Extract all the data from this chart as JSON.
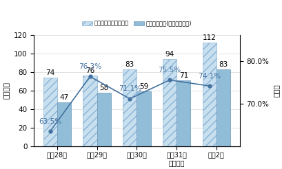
{
  "categories": [
    "平成28年",
    "平成29年",
    "平成30年",
    "平成31年\n令和元年",
    "令和2年"
  ],
  "supervision_values": [
    74,
    76,
    83,
    94,
    112
  ],
  "violation_values": [
    47,
    58,
    59,
    71,
    83
  ],
  "violation_rates": [
    63.5,
    76.3,
    71.1,
    75.5,
    74.1
  ],
  "ylabel_left": "事業場数",
  "ylabel_right": "違反率",
  "ylim_left": [
    0,
    120
  ],
  "ylim_right": [
    60.0,
    86.0
  ],
  "yticks_left": [
    0,
    20,
    40,
    60,
    80,
    100,
    120
  ],
  "yticks_right": [
    70.0,
    80.0
  ],
  "ytick_right_labels": [
    "70.0%",
    "80.0%"
  ],
  "legend_supervision": "監督指導実施事業場数",
  "legend_violation": "違反事業場数(折線は違反率)",
  "bar_width": 0.35,
  "supervision_facecolor": "#c8dff0",
  "violation_facecolor": "#92bdd8",
  "supervision_edgecolor": "#8ab4d4",
  "violation_edgecolor": "#6896b8",
  "line_color": "#4472a0",
  "hatch": "///",
  "label_fontsize": 7.5,
  "tick_fontsize": 7.5,
  "annotation_fontsize": 7.5,
  "rate_fontsize": 7.5
}
